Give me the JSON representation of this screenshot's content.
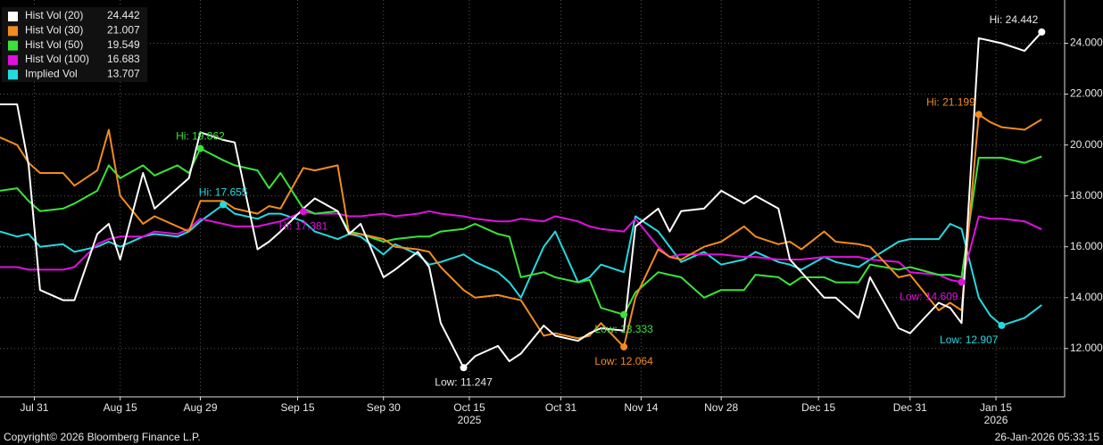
{
  "chart_data": {
    "type": "line",
    "x": [
      "2025-07-25",
      "2025-07-28",
      "2025-07-30",
      "2025-08-01",
      "2025-08-05",
      "2025-08-07",
      "2025-08-11",
      "2025-08-13",
      "2025-08-15",
      "2025-08-19",
      "2025-08-21",
      "2025-08-25",
      "2025-08-27",
      "2025-08-29",
      "2025-09-02",
      "2025-09-04",
      "2025-09-08",
      "2025-09-10",
      "2025-09-12",
      "2025-09-16",
      "2025-09-18",
      "2025-09-22",
      "2025-09-24",
      "2025-09-26",
      "2025-09-30",
      "2025-10-02",
      "2025-10-06",
      "2025-10-08",
      "2025-10-10",
      "2025-10-14",
      "2025-10-16",
      "2025-10-20",
      "2025-10-22",
      "2025-10-24",
      "2025-10-28",
      "2025-10-30",
      "2025-11-03",
      "2025-11-05",
      "2025-11-07",
      "2025-11-11",
      "2025-11-13",
      "2025-11-17",
      "2025-11-19",
      "2025-11-21",
      "2025-11-25",
      "2025-11-28",
      "2025-12-02",
      "2025-12-04",
      "2025-12-08",
      "2025-12-10",
      "2025-12-12",
      "2025-12-16",
      "2025-12-18",
      "2025-12-22",
      "2025-12-24",
      "2025-12-29",
      "2025-12-31",
      "2026-01-05",
      "2026-01-07",
      "2026-01-09",
      "2026-01-12",
      "2026-01-14",
      "2026-01-16",
      "2026-01-20",
      "2026-01-23"
    ],
    "series": [
      {
        "name": "Hist Vol (20)",
        "color": "#ffffff",
        "values": [
          21.6,
          21.6,
          19.2,
          14.3,
          13.9,
          13.9,
          16.5,
          16.9,
          15.5,
          18.9,
          17.5,
          18.3,
          18.7,
          20.5,
          20.2,
          20.1,
          15.9,
          16.2,
          16.6,
          17.5,
          17.9,
          17.4,
          16.5,
          16.9,
          14.8,
          15.1,
          15.8,
          15.2,
          13.0,
          11.247,
          11.7,
          12.1,
          11.5,
          11.8,
          12.9,
          12.5,
          12.3,
          12.6,
          12.8,
          12.7,
          16.8,
          17.5,
          16.6,
          17.4,
          17.5,
          18.2,
          17.7,
          18.0,
          17.5,
          15.5,
          15.0,
          14.0,
          14.0,
          13.2,
          14.8,
          12.8,
          12.6,
          13.8,
          13.6,
          13.0,
          24.2,
          24.1,
          24.0,
          23.7,
          24.442
        ],
        "annotations": [
          {
            "text": "Hi: 24.442",
            "x": "2026-01-23",
            "y": 24.442
          },
          {
            "text": "Low: 11.247",
            "x": "2025-10-14",
            "y": 11.247
          }
        ]
      },
      {
        "name": "Hist Vol (30)",
        "color": "#f28c1e",
        "values": [
          20.3,
          20.0,
          19.3,
          18.9,
          18.9,
          18.4,
          19.0,
          20.6,
          18.0,
          16.9,
          17.2,
          16.8,
          16.6,
          17.8,
          17.8,
          17.5,
          17.3,
          17.6,
          17.5,
          19.1,
          19.0,
          19.2,
          16.5,
          16.5,
          16.3,
          16.0,
          15.9,
          15.8,
          15.2,
          14.3,
          14.0,
          14.1,
          14.0,
          13.9,
          12.5,
          12.6,
          12.4,
          12.5,
          13.0,
          12.064,
          14.0,
          15.9,
          15.6,
          15.5,
          16.0,
          16.2,
          16.8,
          16.4,
          16.1,
          16.2,
          15.9,
          16.6,
          16.2,
          16.1,
          16.0,
          14.8,
          14.9,
          13.5,
          13.8,
          13.5,
          21.199,
          20.9,
          20.7,
          20.6,
          21.007
        ],
        "annotations": [
          {
            "text": "Hi: 21.199",
            "x": "2026-01-12",
            "y": 21.199
          },
          {
            "text": "Low: 12.064",
            "x": "2025-11-11",
            "y": 12.064
          }
        ]
      },
      {
        "name": "Hist Vol (50)",
        "color": "#39e33a",
        "values": [
          18.2,
          18.3,
          17.8,
          17.4,
          17.5,
          17.7,
          18.2,
          19.2,
          18.7,
          19.2,
          18.8,
          19.2,
          18.9,
          19.862,
          19.4,
          19.2,
          19.0,
          18.3,
          18.9,
          17.5,
          17.3,
          17.4,
          16.6,
          16.5,
          16.2,
          16.3,
          16.4,
          16.4,
          16.6,
          16.7,
          16.9,
          16.5,
          16.4,
          14.8,
          15.0,
          14.8,
          14.6,
          14.7,
          13.6,
          13.333,
          14.2,
          15.0,
          14.9,
          14.8,
          14.0,
          14.3,
          14.3,
          14.9,
          14.8,
          14.5,
          14.8,
          14.8,
          14.6,
          14.6,
          15.3,
          15.1,
          15.2,
          14.9,
          14.9,
          14.8,
          19.5,
          19.5,
          19.5,
          19.3,
          19.549
        ],
        "annotations": [
          {
            "text": "Hi: 19.862",
            "x": "2025-08-29",
            "y": 19.862
          },
          {
            "text": "Low: 13.333",
            "x": "2025-11-11",
            "y": 13.333
          }
        ]
      },
      {
        "name": "Hist Vol (100)",
        "color": "#e010e0",
        "values": [
          15.2,
          15.2,
          15.1,
          15.1,
          15.1,
          15.2,
          16.1,
          16.3,
          16.4,
          16.4,
          16.6,
          16.5,
          16.7,
          17.1,
          16.9,
          16.8,
          16.8,
          16.9,
          17.0,
          17.381,
          17.3,
          17.3,
          17.2,
          17.2,
          17.3,
          17.2,
          17.3,
          17.4,
          17.3,
          17.2,
          17.1,
          17.0,
          17.0,
          17.1,
          17.0,
          17.2,
          17.0,
          16.8,
          16.7,
          16.6,
          17.1,
          16.0,
          15.6,
          15.7,
          15.7,
          15.7,
          15.6,
          15.6,
          15.5,
          15.5,
          15.5,
          15.6,
          15.6,
          15.6,
          15.5,
          15.4,
          15.0,
          14.9,
          14.7,
          14.609,
          17.2,
          17.1,
          17.1,
          17.0,
          16.683
        ],
        "annotations": [
          {
            "text": "Hi: 17.381",
            "x": "2025-09-16",
            "y": 17.381
          },
          {
            "text": "Low: 14.609",
            "x": "2026-01-09",
            "y": 14.609
          }
        ]
      },
      {
        "name": "Implied Vol",
        "color": "#25d9e0",
        "values": [
          16.6,
          16.4,
          16.5,
          16.0,
          16.1,
          15.8,
          16.0,
          16.2,
          16.0,
          16.4,
          16.5,
          16.4,
          16.6,
          17.0,
          17.655,
          17.3,
          17.1,
          17.3,
          17.3,
          17.0,
          16.6,
          16.3,
          16.5,
          16.4,
          15.7,
          16.1,
          15.7,
          15.3,
          15.4,
          15.7,
          15.4,
          15.0,
          14.6,
          14.0,
          16.0,
          16.6,
          14.6,
          14.8,
          15.3,
          15.0,
          17.2,
          16.6,
          16.0,
          15.4,
          15.8,
          15.3,
          15.5,
          15.8,
          15.4,
          15.3,
          15.1,
          15.6,
          15.4,
          15.2,
          15.5,
          16.2,
          16.3,
          16.3,
          16.9,
          16.7,
          14.0,
          13.3,
          12.907,
          13.2,
          13.707
        ],
        "annotations": [
          {
            "text": "Hi: 17.655",
            "x": "2025-09-02",
            "y": 17.655
          },
          {
            "text": "Low: 12.907",
            "x": "2026-01-16",
            "y": 12.907
          }
        ]
      }
    ],
    "xlim": [
      "2025-07-25",
      "2026-01-27"
    ],
    "xticks": [
      {
        "value": "2025-07-31",
        "label": "Jul 31"
      },
      {
        "value": "2025-08-15",
        "label": "Aug 15"
      },
      {
        "value": "2025-08-29",
        "label": "Aug 29"
      },
      {
        "value": "2025-09-15",
        "label": "Sep 15"
      },
      {
        "value": "2025-09-30",
        "label": "Sep 30"
      },
      {
        "value": "2025-10-15",
        "label": "Oct 15"
      },
      {
        "value": "2025-10-31",
        "label": "Oct 31"
      },
      {
        "value": "2025-11-14",
        "label": "Nov 14"
      },
      {
        "value": "2025-11-28",
        "label": "Nov 28"
      },
      {
        "value": "2025-12-15",
        "label": "Dec 15"
      },
      {
        "value": "2025-12-31",
        "label": "Dec 31"
      },
      {
        "value": "2026-01-15",
        "label": "Jan 15"
      }
    ],
    "year_labels": [
      {
        "value": "2025-10-15",
        "label": "2025"
      },
      {
        "value": "2026-01-15",
        "label": "2026"
      }
    ],
    "ylim": [
      10.1,
      25.7
    ],
    "yticks": [
      {
        "value": 12,
        "label": "12.000"
      },
      {
        "value": 14,
        "label": "14.000"
      },
      {
        "value": 16,
        "label": "16.000"
      },
      {
        "value": 18,
        "label": "18.000"
      },
      {
        "value": 20,
        "label": "20.000"
      },
      {
        "value": 22,
        "label": "22.000"
      },
      {
        "value": 24,
        "label": "24.000"
      }
    ],
    "grid": true,
    "legend": "upper left"
  },
  "footer": {
    "left": "Copyright© 2026 Bloomberg Finance L.P.",
    "right": "26-Jan-2026 05:33:15"
  }
}
